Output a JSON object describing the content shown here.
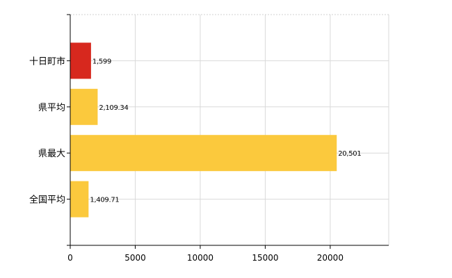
{
  "chart_data": {
    "type": "bar",
    "orientation": "horizontal",
    "categories": [
      "十日町市",
      "県平均",
      "県最大",
      "全国平均"
    ],
    "values": [
      1599,
      2109.34,
      20501,
      1409.71
    ],
    "value_labels": [
      "1,599",
      "2,109.34",
      "20,501",
      "1,409.71"
    ],
    "colors": [
      "#d7281e",
      "#fbc93d",
      "#fbc93d",
      "#fbc93d"
    ],
    "xlim": [
      0,
      24500
    ],
    "xticks": [
      0,
      5000,
      10000,
      15000,
      20000
    ],
    "xtick_labels": [
      "0",
      "5000",
      "10000",
      "15000",
      "20000"
    ],
    "grid": true,
    "legend": "none"
  }
}
